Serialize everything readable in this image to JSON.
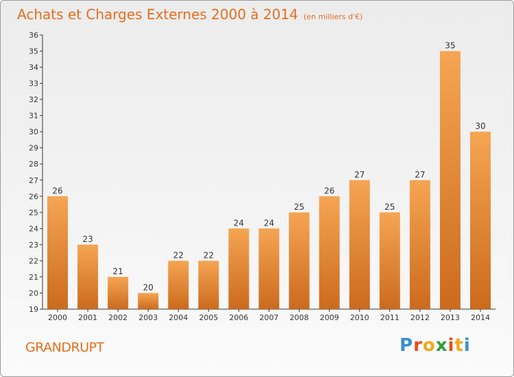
{
  "header": {
    "title": "Achats et Charges Externes 2000 à 2014",
    "unit": "(en milliers d'€)"
  },
  "footer": {
    "commune": "GRANDRUPT"
  },
  "brand": {
    "letters": [
      "P",
      "r",
      "o",
      "x",
      "i",
      "t",
      "i"
    ],
    "colors": [
      "#3a8fd6",
      "#e2501c",
      "#f2a81d",
      "#2e9e3a",
      "#e2501c",
      "#f2a81d",
      "#3a8fd6"
    ]
  },
  "colors": {
    "bar_top": "#f5a553",
    "bar_bottom": "#cc6a1d",
    "title": "#e46e1e"
  },
  "chart_data": {
    "type": "bar",
    "title": "Achats et Charges Externes 2000 à 2014",
    "categories": [
      "2000",
      "2001",
      "2002",
      "2003",
      "2004",
      "2005",
      "2006",
      "2007",
      "2008",
      "2009",
      "2010",
      "2011",
      "2012",
      "2013",
      "2014"
    ],
    "values": [
      26,
      23,
      21,
      20,
      22,
      22,
      24,
      24,
      25,
      26,
      27,
      25,
      27,
      35,
      30
    ],
    "ylim": [
      19,
      36
    ],
    "yticks": [
      19,
      20,
      21,
      22,
      23,
      24,
      25,
      26,
      27,
      28,
      29,
      30,
      31,
      32,
      33,
      34,
      35,
      36
    ],
    "grid": false,
    "legend": "none"
  }
}
